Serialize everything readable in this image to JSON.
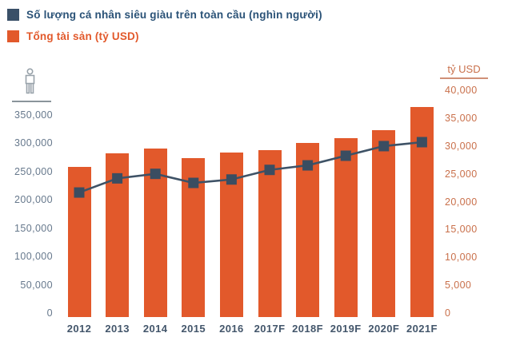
{
  "legend": {
    "items": [
      {
        "label": "Số lượng cá nhân siêu giàu trên toàn cầu (nghìn người)",
        "swatch_color": "#3A5068",
        "text_color": "#2A5277"
      },
      {
        "label": "Tổng tài sản (tỷ USD)",
        "swatch_color": "#E2592B",
        "text_color": "#E2592B"
      }
    ]
  },
  "left_axis": {
    "icon": "person-icon",
    "tick_labels": [
      "350,000",
      "300,000",
      "250,000",
      "200,000",
      "150,000",
      "100,000",
      "50,000",
      "0"
    ]
  },
  "right_axis": {
    "title": "tỷ USD",
    "tick_labels": [
      "40,000",
      "35,000",
      "30,000",
      "25,000",
      "20,000",
      "15,000",
      "10,000",
      "5,000",
      "0"
    ]
  },
  "chart_data": {
    "type": "bar",
    "title": "",
    "categories": [
      "2012",
      "2013",
      "2014",
      "2015",
      "2016",
      "2017F",
      "2018F",
      "2019F",
      "2020F",
      "2021F"
    ],
    "series": [
      {
        "name": "Số lượng cá nhân siêu giàu trên toàn cầu (nghìn người)",
        "type": "line",
        "axis": "left",
        "color": "#3E5266",
        "marker": "square",
        "values": [
          213000,
          238000,
          246000,
          230000,
          236000,
          253000,
          261000,
          278000,
          295000,
          302000
        ]
      },
      {
        "name": "Tổng tài sản (tỷ USD)",
        "type": "bar",
        "axis": "right",
        "color": "#E2592B",
        "values": [
          26200,
          28700,
          29600,
          27800,
          28800,
          29200,
          30500,
          31400,
          32800,
          37000
        ]
      }
    ],
    "left_axis_range": [
      0,
      350000
    ],
    "left_axis_tick_step": 50000,
    "right_axis_range": [
      0,
      40000
    ],
    "right_axis_tick_step": 5000,
    "right_axis_label": "tỷ USD",
    "grid": false,
    "legend_position": "top-left"
  },
  "colors": {
    "bar": "#E2592B",
    "line": "#3E5266",
    "marker": "#3A4D61",
    "left_ticks": "#66788C",
    "right_ticks": "#C9704B",
    "x_labels": "#43566B"
  }
}
